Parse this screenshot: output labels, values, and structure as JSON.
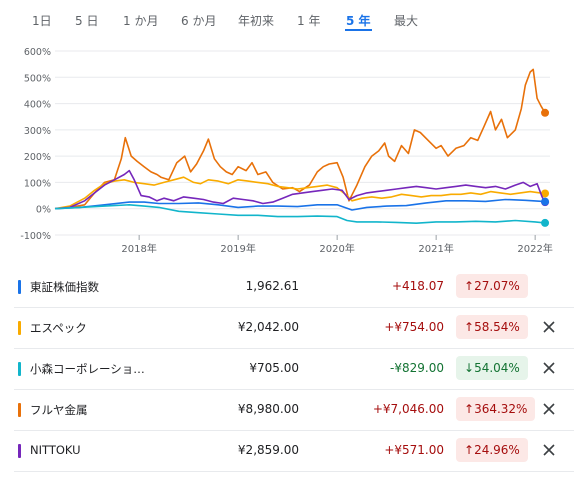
{
  "tabs": [
    {
      "label": "1日",
      "active": false
    },
    {
      "label": "5 日",
      "active": false
    },
    {
      "label": "1 か月",
      "active": false
    },
    {
      "label": "6 か月",
      "active": false
    },
    {
      "label": "年初来",
      "active": false
    },
    {
      "label": "1 年",
      "active": false
    },
    {
      "label": "5 年",
      "active": true
    },
    {
      "label": "最大",
      "active": false
    }
  ],
  "rows": [
    {
      "name": "東証株価指数",
      "price": "1,962.61",
      "change": "+418.07",
      "percent": "27.07%",
      "direction": "up",
      "color": "#1a73e8",
      "removable": false
    },
    {
      "name": "エスペック",
      "price": "¥2,042.00",
      "change": "+¥754.00",
      "percent": "58.54%",
      "direction": "up",
      "color": "#f9ab00",
      "removable": true
    },
    {
      "name": "小森コーポレーショ…",
      "price": "¥705.00",
      "change": "-¥829.00",
      "percent": "54.04%",
      "direction": "down",
      "color": "#12b5cb",
      "removable": true
    },
    {
      "name": "フルヤ金属",
      "price": "¥8,980.00",
      "change": "+¥7,046.00",
      "percent": "364.32%",
      "direction": "up",
      "color": "#e8710a",
      "removable": true
    },
    {
      "name": "NITTOKU",
      "price": "¥2,859.00",
      "change": "+¥571.00",
      "percent": "24.96%",
      "direction": "up",
      "color": "#7627bb",
      "removable": true
    }
  ],
  "chart_data": {
    "type": "line",
    "ylim": [
      -100,
      600
    ],
    "yticks": [
      "600%",
      "500%",
      "400%",
      "300%",
      "200%",
      "100%",
      "0%",
      "-100%"
    ],
    "ytick_values": [
      600,
      500,
      400,
      300,
      200,
      100,
      0,
      -100
    ],
    "xticks": [
      {
        "label": "2018年",
        "t": 2018.0
      },
      {
        "label": "2019年",
        "t": 2019.0
      },
      {
        "label": "2020年",
        "t": 2020.0
      },
      {
        "label": "2021年",
        "t": 2021.0
      },
      {
        "label": "2022年",
        "t": 2022.0
      }
    ],
    "xlim": [
      2017.15,
      2022.15
    ],
    "series": [
      {
        "name": "フルヤ金属",
        "color": "#e8710a",
        "points": [
          [
            2017.15,
            0
          ],
          [
            2017.3,
            5
          ],
          [
            2017.45,
            15
          ],
          [
            2017.55,
            60
          ],
          [
            2017.65,
            100
          ],
          [
            2017.75,
            110
          ],
          [
            2017.82,
            190
          ],
          [
            2017.86,
            270
          ],
          [
            2017.92,
            200
          ],
          [
            2017.98,
            180
          ],
          [
            2018.05,
            160
          ],
          [
            2018.12,
            140
          ],
          [
            2018.18,
            130
          ],
          [
            2018.22,
            120
          ],
          [
            2018.3,
            110
          ],
          [
            2018.38,
            175
          ],
          [
            2018.46,
            200
          ],
          [
            2018.52,
            140
          ],
          [
            2018.58,
            170
          ],
          [
            2018.65,
            220
          ],
          [
            2018.7,
            265
          ],
          [
            2018.76,
            190
          ],
          [
            2018.82,
            160
          ],
          [
            2018.88,
            140
          ],
          [
            2018.94,
            130
          ],
          [
            2019.0,
            160
          ],
          [
            2019.08,
            145
          ],
          [
            2019.14,
            175
          ],
          [
            2019.2,
            130
          ],
          [
            2019.28,
            140
          ],
          [
            2019.35,
            100
          ],
          [
            2019.45,
            75
          ],
          [
            2019.55,
            80
          ],
          [
            2019.62,
            65
          ],
          [
            2019.72,
            90
          ],
          [
            2019.8,
            140
          ],
          [
            2019.86,
            160
          ],
          [
            2019.92,
            170
          ],
          [
            2020.0,
            175
          ],
          [
            2020.06,
            120
          ],
          [
            2020.12,
            30
          ],
          [
            2020.2,
            90
          ],
          [
            2020.28,
            160
          ],
          [
            2020.35,
            200
          ],
          [
            2020.42,
            220
          ],
          [
            2020.48,
            250
          ],
          [
            2020.52,
            200
          ],
          [
            2020.58,
            180
          ],
          [
            2020.65,
            240
          ],
          [
            2020.72,
            210
          ],
          [
            2020.78,
            300
          ],
          [
            2020.84,
            290
          ],
          [
            2020.92,
            260
          ],
          [
            2021.0,
            230
          ],
          [
            2021.05,
            240
          ],
          [
            2021.12,
            200
          ],
          [
            2021.2,
            230
          ],
          [
            2021.28,
            240
          ],
          [
            2021.35,
            270
          ],
          [
            2021.42,
            260
          ],
          [
            2021.48,
            310
          ],
          [
            2021.55,
            370
          ],
          [
            2021.6,
            300
          ],
          [
            2021.66,
            340
          ],
          [
            2021.72,
            270
          ],
          [
            2021.8,
            300
          ],
          [
            2021.86,
            380
          ],
          [
            2021.9,
            470
          ],
          [
            2021.95,
            520
          ],
          [
            2021.98,
            530
          ],
          [
            2022.02,
            420
          ],
          [
            2022.06,
            390
          ],
          [
            2022.1,
            365
          ]
        ]
      },
      {
        "name": "エスペック",
        "color": "#f9ab00",
        "points": [
          [
            2017.15,
            0
          ],
          [
            2017.3,
            10
          ],
          [
            2017.45,
            40
          ],
          [
            2017.55,
            70
          ],
          [
            2017.65,
            95
          ],
          [
            2017.75,
            105
          ],
          [
            2017.85,
            110
          ],
          [
            2017.95,
            100
          ],
          [
            2018.05,
            95
          ],
          [
            2018.15,
            90
          ],
          [
            2018.25,
            100
          ],
          [
            2018.35,
            110
          ],
          [
            2018.45,
            120
          ],
          [
            2018.55,
            100
          ],
          [
            2018.62,
            95
          ],
          [
            2018.7,
            110
          ],
          [
            2018.8,
            105
          ],
          [
            2018.9,
            95
          ],
          [
            2019.0,
            110
          ],
          [
            2019.1,
            105
          ],
          [
            2019.2,
            100
          ],
          [
            2019.3,
            95
          ],
          [
            2019.4,
            85
          ],
          [
            2019.5,
            80
          ],
          [
            2019.6,
            75
          ],
          [
            2019.7,
            80
          ],
          [
            2019.8,
            85
          ],
          [
            2019.9,
            90
          ],
          [
            2020.0,
            80
          ],
          [
            2020.1,
            50
          ],
          [
            2020.15,
            30
          ],
          [
            2020.25,
            40
          ],
          [
            2020.35,
            45
          ],
          [
            2020.45,
            40
          ],
          [
            2020.55,
            45
          ],
          [
            2020.65,
            55
          ],
          [
            2020.75,
            50
          ],
          [
            2020.85,
            45
          ],
          [
            2020.95,
            50
          ],
          [
            2021.05,
            50
          ],
          [
            2021.15,
            55
          ],
          [
            2021.25,
            55
          ],
          [
            2021.35,
            60
          ],
          [
            2021.45,
            55
          ],
          [
            2021.55,
            65
          ],
          [
            2021.65,
            60
          ],
          [
            2021.75,
            55
          ],
          [
            2021.85,
            60
          ],
          [
            2021.95,
            65
          ],
          [
            2022.05,
            60
          ],
          [
            2022.1,
            58
          ]
        ]
      },
      {
        "name": "NITTOKU",
        "color": "#7627bb",
        "points": [
          [
            2017.15,
            0
          ],
          [
            2017.3,
            5
          ],
          [
            2017.45,
            30
          ],
          [
            2017.55,
            60
          ],
          [
            2017.65,
            90
          ],
          [
            2017.75,
            110
          ],
          [
            2017.85,
            130
          ],
          [
            2017.9,
            145
          ],
          [
            2017.95,
            110
          ],
          [
            2018.02,
            50
          ],
          [
            2018.1,
            45
          ],
          [
            2018.18,
            30
          ],
          [
            2018.25,
            40
          ],
          [
            2018.35,
            30
          ],
          [
            2018.45,
            45
          ],
          [
            2018.55,
            40
          ],
          [
            2018.65,
            35
          ],
          [
            2018.75,
            25
          ],
          [
            2018.85,
            20
          ],
          [
            2018.95,
            40
          ],
          [
            2019.05,
            35
          ],
          [
            2019.15,
            30
          ],
          [
            2019.25,
            20
          ],
          [
            2019.35,
            25
          ],
          [
            2019.45,
            40
          ],
          [
            2019.55,
            55
          ],
          [
            2019.65,
            60
          ],
          [
            2019.75,
            65
          ],
          [
            2019.85,
            70
          ],
          [
            2019.95,
            75
          ],
          [
            2020.05,
            70
          ],
          [
            2020.12,
            35
          ],
          [
            2020.2,
            50
          ],
          [
            2020.3,
            60
          ],
          [
            2020.4,
            65
          ],
          [
            2020.5,
            70
          ],
          [
            2020.6,
            75
          ],
          [
            2020.7,
            80
          ],
          [
            2020.8,
            85
          ],
          [
            2020.9,
            80
          ],
          [
            2021.0,
            75
          ],
          [
            2021.1,
            80
          ],
          [
            2021.2,
            85
          ],
          [
            2021.3,
            90
          ],
          [
            2021.4,
            85
          ],
          [
            2021.5,
            80
          ],
          [
            2021.6,
            85
          ],
          [
            2021.7,
            75
          ],
          [
            2021.8,
            90
          ],
          [
            2021.88,
            100
          ],
          [
            2021.95,
            85
          ],
          [
            2022.02,
            95
          ],
          [
            2022.07,
            45
          ],
          [
            2022.1,
            25
          ]
        ]
      },
      {
        "name": "東証株価指数",
        "color": "#1a73e8",
        "points": [
          [
            2017.15,
            0
          ],
          [
            2017.4,
            5
          ],
          [
            2017.65,
            15
          ],
          [
            2017.9,
            25
          ],
          [
            2018.05,
            25
          ],
          [
            2018.2,
            20
          ],
          [
            2018.4,
            20
          ],
          [
            2018.6,
            22
          ],
          [
            2018.8,
            15
          ],
          [
            2019.0,
            5
          ],
          [
            2019.2,
            10
          ],
          [
            2019.4,
            10
          ],
          [
            2019.6,
            8
          ],
          [
            2019.8,
            15
          ],
          [
            2020.0,
            15
          ],
          [
            2020.15,
            -5
          ],
          [
            2020.3,
            5
          ],
          [
            2020.5,
            10
          ],
          [
            2020.7,
            12
          ],
          [
            2020.9,
            22
          ],
          [
            2021.1,
            30
          ],
          [
            2021.3,
            30
          ],
          [
            2021.5,
            28
          ],
          [
            2021.7,
            35
          ],
          [
            2021.9,
            32
          ],
          [
            2022.1,
            27
          ]
        ]
      },
      {
        "name": "小森コーポレーショ…",
        "color": "#12b5cb",
        "points": [
          [
            2017.15,
            0
          ],
          [
            2017.4,
            5
          ],
          [
            2017.65,
            10
          ],
          [
            2017.9,
            15
          ],
          [
            2018.05,
            10
          ],
          [
            2018.2,
            5
          ],
          [
            2018.4,
            -10
          ],
          [
            2018.6,
            -15
          ],
          [
            2018.8,
            -20
          ],
          [
            2019.0,
            -25
          ],
          [
            2019.2,
            -25
          ],
          [
            2019.4,
            -30
          ],
          [
            2019.6,
            -30
          ],
          [
            2019.8,
            -28
          ],
          [
            2020.0,
            -30
          ],
          [
            2020.1,
            -45
          ],
          [
            2020.2,
            -50
          ],
          [
            2020.4,
            -50
          ],
          [
            2020.6,
            -52
          ],
          [
            2020.8,
            -55
          ],
          [
            2021.0,
            -50
          ],
          [
            2021.2,
            -50
          ],
          [
            2021.4,
            -48
          ],
          [
            2021.6,
            -50
          ],
          [
            2021.8,
            -45
          ],
          [
            2022.0,
            -50
          ],
          [
            2022.1,
            -54
          ]
        ]
      }
    ]
  }
}
